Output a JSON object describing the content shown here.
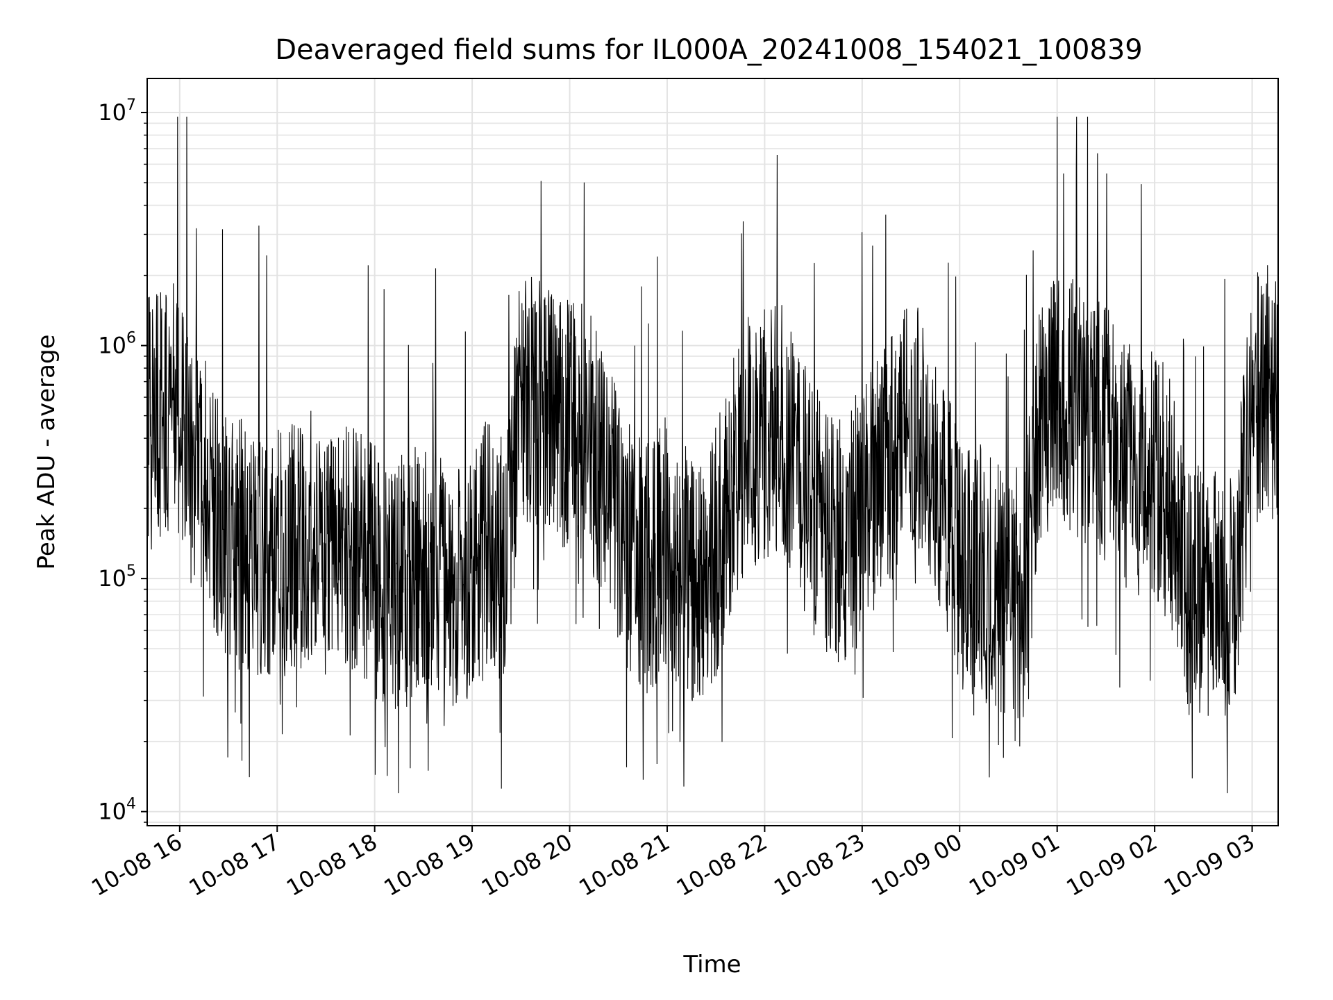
{
  "chart_data": {
    "type": "line",
    "title": "Deaveraged field sums for IL000A_20241008_154021_100839",
    "xlabel": "Time",
    "ylabel": "Peak ADU - average",
    "yscale": "log",
    "ylim": [
      8700,
      14000000
    ],
    "xlim": [
      "2024-10-08 15:40",
      "2024-10-09 03:16"
    ],
    "x_ticks": [
      "10-08 16",
      "10-08 17",
      "10-08 18",
      "10-08 19",
      "10-08 20",
      "10-08 21",
      "10-08 22",
      "10-08 23",
      "10-09 00",
      "10-09 01",
      "10-09 02",
      "10-09 03"
    ],
    "y_ticks": [
      {
        "base": "10",
        "exp": "4",
        "value": 10000
      },
      {
        "base": "10",
        "exp": "5",
        "value": 100000
      },
      {
        "base": "10",
        "exp": "6",
        "value": 1000000
      },
      {
        "base": "10",
        "exp": "7",
        "value": 10000000
      }
    ],
    "grid": true,
    "series": [
      {
        "color": "#000000",
        "x": [
          "2024-10-08 15:40",
          "2024-10-08 15:50",
          "2024-10-08 16:00",
          "2024-10-08 16:10",
          "2024-10-08 16:20",
          "2024-10-08 16:30",
          "2024-10-08 16:40",
          "2024-10-08 16:50",
          "2024-10-08 17:00",
          "2024-10-08 17:10",
          "2024-10-08 17:20",
          "2024-10-08 17:30",
          "2024-10-08 17:40",
          "2024-10-08 17:50",
          "2024-10-08 18:00",
          "2024-10-08 18:10",
          "2024-10-08 18:20",
          "2024-10-08 18:30",
          "2024-10-08 18:40",
          "2024-10-08 18:50",
          "2024-10-08 19:00",
          "2024-10-08 19:10",
          "2024-10-08 19:20",
          "2024-10-08 19:30",
          "2024-10-08 19:40",
          "2024-10-08 19:50",
          "2024-10-08 20:00",
          "2024-10-08 20:10",
          "2024-10-08 20:20",
          "2024-10-08 20:30",
          "2024-10-08 20:40",
          "2024-10-08 20:50",
          "2024-10-08 21:00",
          "2024-10-08 21:10",
          "2024-10-08 21:20",
          "2024-10-08 21:30",
          "2024-10-08 21:40",
          "2024-10-08 21:50",
          "2024-10-08 22:00",
          "2024-10-08 22:10",
          "2024-10-08 22:20",
          "2024-10-08 22:30",
          "2024-10-08 22:40",
          "2024-10-08 22:50",
          "2024-10-08 23:00",
          "2024-10-08 23:10",
          "2024-10-08 23:20",
          "2024-10-08 23:30",
          "2024-10-08 23:40",
          "2024-10-08 23:50",
          "2024-10-09 00:00",
          "2024-10-09 00:10",
          "2024-10-09 00:20",
          "2024-10-09 00:30",
          "2024-10-09 00:40",
          "2024-10-09 00:50",
          "2024-10-09 01:00",
          "2024-10-09 01:10",
          "2024-10-09 01:20",
          "2024-10-09 01:30",
          "2024-10-09 01:40",
          "2024-10-09 01:50",
          "2024-10-09 02:00",
          "2024-10-09 02:10",
          "2024-10-09 02:20",
          "2024-10-09 02:30",
          "2024-10-09 02:40",
          "2024-10-09 02:50",
          "2024-10-09 03:00",
          "2024-10-09 03:10",
          "2024-10-09 03:16"
        ],
        "y": [
          450000,
          500000,
          550000,
          350000,
          200000,
          150000,
          140000,
          130000,
          140000,
          130000,
          160000,
          120000,
          150000,
          140000,
          110000,
          90000,
          100000,
          110000,
          100000,
          90000,
          110000,
          140000,
          120000,
          600000,
          550000,
          500000,
          450000,
          420000,
          300000,
          180000,
          120000,
          110000,
          150000,
          110000,
          90000,
          130000,
          250000,
          380000,
          420000,
          480000,
          300000,
          200000,
          160000,
          140000,
          200000,
          260000,
          350000,
          450000,
          380000,
          200000,
          120000,
          110000,
          100000,
          80000,
          90000,
          500000,
          600000,
          550000,
          480000,
          420000,
          320000,
          250000,
          280000,
          220000,
          90000,
          85000,
          80000,
          90000,
          600000,
          650000,
          620000
        ]
      }
    ]
  }
}
